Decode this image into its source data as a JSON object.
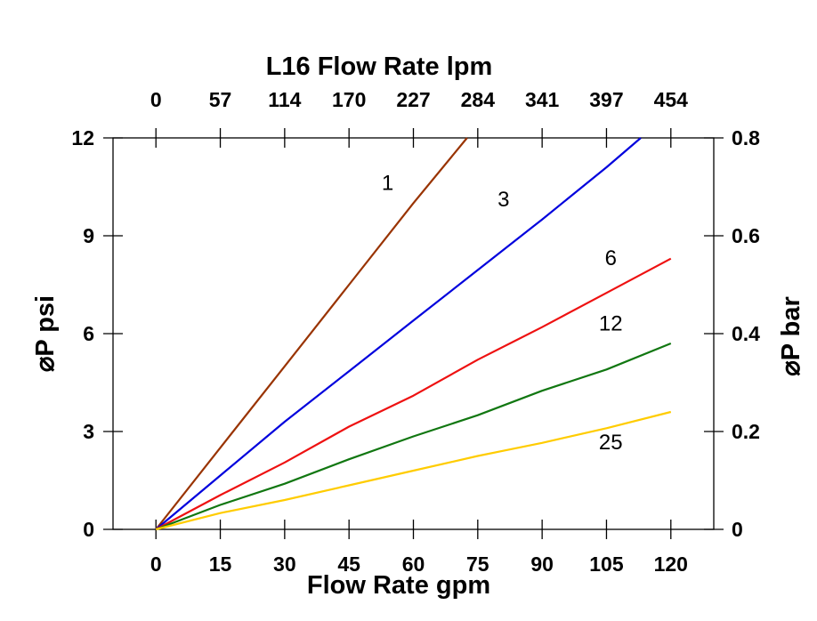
{
  "chart_data": {
    "type": "line",
    "title": "L16  Flow Rate lpm",
    "xlabel": "Flow Rate gpm",
    "ylabel_left": "⌀P psi",
    "ylabel_right": "⌀P bar",
    "xlim": [
      -10,
      130
    ],
    "ylim": [
      0,
      12
    ],
    "ylim_right": [
      0,
      0.8
    ],
    "x_ticks": [
      0,
      15,
      30,
      45,
      60,
      75,
      90,
      105,
      120
    ],
    "x_tick_labels": [
      "0",
      "15",
      "30",
      "45",
      "60",
      "75",
      "90",
      "105",
      "120"
    ],
    "x_top_ticks": [
      0,
      15,
      30,
      45,
      60,
      75,
      90,
      105,
      120
    ],
    "x_top_tick_labels": [
      "0",
      "57",
      "114",
      "170",
      "227",
      "284",
      "341",
      "397",
      "454"
    ],
    "y_ticks": [
      0,
      3,
      6,
      9,
      12
    ],
    "y_tick_labels": [
      "0",
      "3",
      "6",
      "9",
      "12"
    ],
    "y_right_ticks": [
      0,
      0.2,
      0.4,
      0.6,
      0.8
    ],
    "y_right_tick_labels": [
      "0",
      "0.2",
      "0.4",
      "0.6",
      "0.8"
    ],
    "grid": false,
    "series": [
      {
        "name": "1",
        "color": "#993300",
        "x": [
          0,
          15,
          30,
          45,
          60,
          72.5
        ],
        "y": [
          0,
          2.5,
          5.0,
          7.5,
          10.0,
          12.0
        ],
        "label_pos": [
          54,
          10.4
        ]
      },
      {
        "name": "3",
        "color": "#0000dd",
        "x": [
          0,
          15,
          30,
          45,
          60,
          75,
          90,
          105,
          113
        ],
        "y": [
          0,
          1.65,
          3.3,
          4.85,
          6.4,
          7.95,
          9.5,
          11.1,
          12.0
        ],
        "label_pos": [
          81,
          9.9
        ]
      },
      {
        "name": "6",
        "color": "#ee1111",
        "x": [
          0,
          15,
          30,
          45,
          60,
          75,
          90,
          105,
          120
        ],
        "y": [
          0,
          1.05,
          2.05,
          3.15,
          4.1,
          5.2,
          6.2,
          7.25,
          8.3
        ],
        "label_pos": [
          106,
          8.1
        ]
      },
      {
        "name": "12",
        "color": "#117711",
        "x": [
          0,
          15,
          30,
          45,
          60,
          75,
          90,
          105,
          120
        ],
        "y": [
          0,
          0.75,
          1.4,
          2.15,
          2.85,
          3.5,
          4.25,
          4.9,
          5.7
        ],
        "label_pos": [
          106,
          6.1
        ]
      },
      {
        "name": "25",
        "color": "#ffcc00",
        "x": [
          0,
          15,
          30,
          45,
          60,
          75,
          90,
          105,
          120
        ],
        "y": [
          0,
          0.5,
          0.9,
          1.35,
          1.8,
          2.25,
          2.65,
          3.1,
          3.6
        ],
        "label_pos": [
          106,
          2.45
        ]
      }
    ]
  }
}
